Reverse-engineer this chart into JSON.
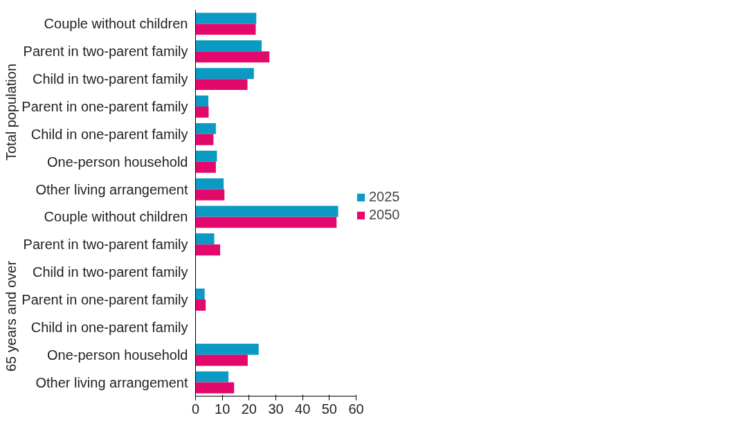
{
  "chart_data": {
    "type": "bar",
    "orientation": "horizontal",
    "categories": [
      "Couple without children",
      "Parent in two-parent family",
      "Child in two-parent family",
      "Parent in one-parent family",
      "Child in one-parent family",
      "One-person household",
      "Other living arrangement",
      "Couple without children",
      "Parent in two-parent family",
      "Child in two-parent family",
      "Parent in one-parent family",
      "Child in one-parent family",
      "One-person household",
      "Other living arrangement"
    ],
    "series": [
      {
        "name": "2025",
        "color": "#0b9ac4",
        "values": [
          22.7,
          24.7,
          21.8,
          4.8,
          7.6,
          8.0,
          10.5,
          53.3,
          7.0,
          null,
          3.4,
          null,
          23.6,
          12.3
        ]
      },
      {
        "name": "2050",
        "color": "#e3086c",
        "values": [
          22.5,
          27.6,
          19.4,
          4.9,
          6.7,
          7.6,
          10.8,
          52.7,
          9.2,
          null,
          3.8,
          null,
          19.5,
          14.4
        ]
      }
    ],
    "annotations": [
      "Total population",
      "65 years and over"
    ],
    "xlim": [
      0,
      60
    ],
    "xticks": [
      0,
      10,
      20,
      30,
      40,
      50,
      60
    ],
    "grid": false,
    "legend": "right"
  }
}
